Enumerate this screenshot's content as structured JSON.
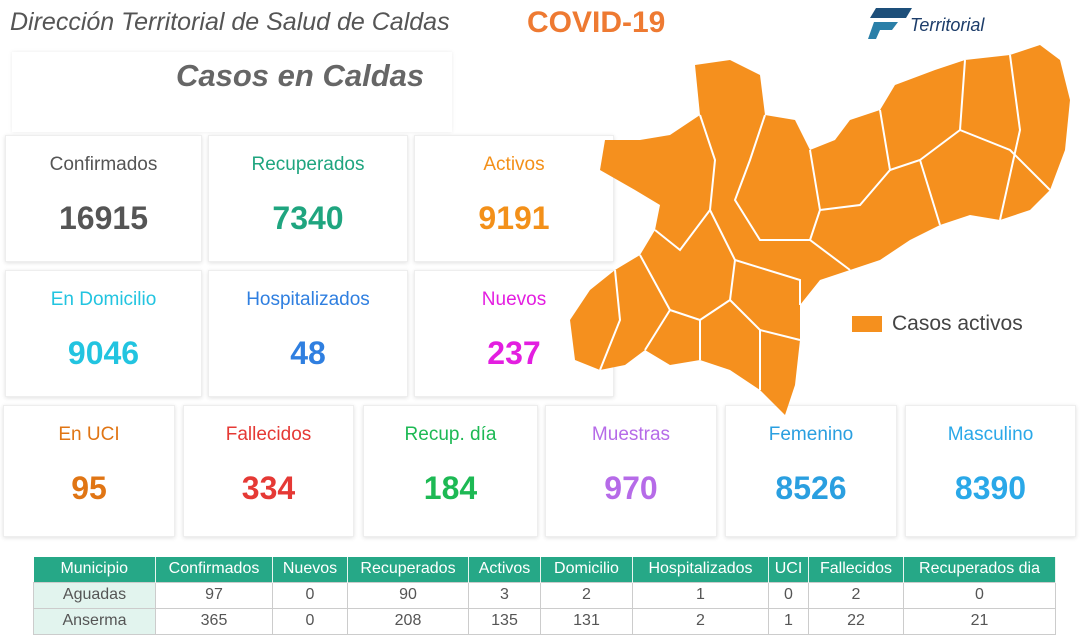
{
  "header": {
    "title": "Dirección Territorial de Salud de Caldas",
    "covid": "COVID-19",
    "logo": "Territorial"
  },
  "subtitle": "Casos en Caldas",
  "cards": [
    {
      "label": "Confirmados",
      "value": "16915",
      "color": "#555555"
    },
    {
      "label": "Recuperados",
      "value": "7340",
      "color": "#1fa57f"
    },
    {
      "label": "Activos",
      "value": "9191",
      "color": "#f39019"
    },
    {
      "label": "En Domicilio",
      "value": "9046",
      "color": "#22c4e0"
    },
    {
      "label": "Hospitalizados",
      "value": "48",
      "color": "#2f7fe0"
    },
    {
      "label": "Nuevos",
      "value": "237",
      "color": "#e31ee0"
    },
    {
      "label": "En UCI",
      "value": "95",
      "color": "#e07514"
    },
    {
      "label": "Fallecidos",
      "value": "334",
      "color": "#e53935"
    },
    {
      "label": "Recup. día",
      "value": "184",
      "color": "#1db954"
    },
    {
      "label": "Muestras",
      "value": "970",
      "color": "#b66be8"
    },
    {
      "label": "Femenino",
      "value": "8526",
      "color": "#2a9fe0"
    },
    {
      "label": "Masculino",
      "value": "8390",
      "color": "#2aa8e8"
    }
  ],
  "map": {
    "legend": "Casos activos",
    "color": "#f5901e"
  },
  "table": {
    "headers": [
      "Municipio",
      "Confirmados",
      "Nuevos",
      "Recuperados",
      "Activos",
      "Domicilio",
      "Hospitalizados",
      "UCI",
      "Fallecidos",
      "Recuperados dia"
    ],
    "rows": [
      [
        "Aguadas",
        "97",
        "0",
        "90",
        "3",
        "2",
        "1",
        "0",
        "2",
        "0"
      ],
      [
        "Anserma",
        "365",
        "0",
        "208",
        "135",
        "131",
        "2",
        "1",
        "22",
        "21"
      ]
    ]
  }
}
